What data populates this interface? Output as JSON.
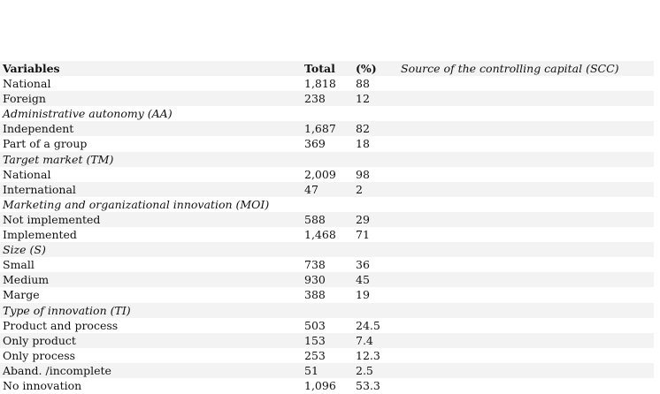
{
  "table": {
    "header": [
      "Variables",
      "Total",
      "(%)",
      "Source of the controlling capital (SCC)"
    ],
    "rows": [
      {
        "label": "National",
        "total": "1,818",
        "pct": "88"
      },
      {
        "label": "Foreign",
        "total": "238",
        "pct": "12"
      },
      {
        "label": "Administrative autonomy (AA)"
      },
      {
        "label": "Independent",
        "total": "1,687",
        "pct": "82"
      },
      {
        "label": "Part of a group",
        "total": "369",
        "pct": "18"
      },
      {
        "label": "Target market (TM)"
      },
      {
        "label": "National",
        "total": "2,009",
        "pct": "98"
      },
      {
        "label": "International",
        "total": "47",
        "pct": "2"
      },
      {
        "label": "Marketing and organizational innovation (MOI)"
      },
      {
        "label": "Not implemented",
        "total": "588",
        "pct": "29"
      },
      {
        "label": "Implemented",
        "total": "1,468",
        "pct": "71"
      },
      {
        "label": "Size (S)"
      },
      {
        "label": "Small",
        "total": "738",
        "pct": "36"
      },
      {
        "label": "Medium",
        "total": "930",
        "pct": "45"
      },
      {
        "label": "Marge",
        "total": "388",
        "pct": "19"
      },
      {
        "label": "Type of innovation (TI)"
      },
      {
        "label": "Product and process",
        "total": "503",
        "pct": "24.5"
      },
      {
        "label": "Only product",
        "total": "153",
        "pct": "7.4"
      },
      {
        "label": "Only process",
        "total": "253",
        "pct": "12.3"
      },
      {
        "label": "Aband. /incomplete",
        "total": "51",
        "pct": "2.5"
      },
      {
        "label": "No innovation",
        "total": "1,096",
        "pct": "53.3"
      }
    ]
  }
}
